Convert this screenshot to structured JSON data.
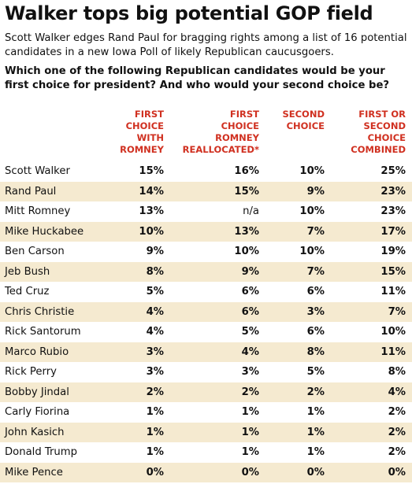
{
  "title": "Walker tops big potential GOP field",
  "subtitle": "Scott Walker edges Rand Paul for bragging rights among a list of 16 potential candidates in a new Iowa Poll of likely Republican caucusgoers.",
  "question": "Which one of the following Republican candidates would be your first choice for president? And who would your second choice be?",
  "colors": {
    "header_red": "#d03020",
    "row_shade": "#f5ead0"
  },
  "chart_data": {
    "type": "table",
    "columns": [
      "FIRST\nCHOICE\nWITH\nROMNEY",
      "FIRST\nCHOICE\nROMNEY\nREALLOCATED*",
      "SECOND\nCHOICE",
      "FIRST OR\nSECOND\nCHOICE\nCOMBINED"
    ],
    "rows": [
      {
        "name": "Scott Walker",
        "values": [
          "15%",
          "16%",
          "10%",
          "25%"
        ]
      },
      {
        "name": "Rand Paul",
        "values": [
          "14%",
          "15%",
          "9%",
          "23%"
        ]
      },
      {
        "name": "Mitt Romney",
        "values": [
          "13%",
          "n/a",
          "10%",
          "23%"
        ]
      },
      {
        "name": "Mike Huckabee",
        "values": [
          "10%",
          "13%",
          "7%",
          "17%"
        ]
      },
      {
        "name": "Ben Carson",
        "values": [
          "9%",
          "10%",
          "10%",
          "19%"
        ]
      },
      {
        "name": "Jeb Bush",
        "values": [
          "8%",
          "9%",
          "7%",
          "15%"
        ]
      },
      {
        "name": "Ted Cruz",
        "values": [
          "5%",
          "6%",
          "6%",
          "11%"
        ]
      },
      {
        "name": "Chris Christie",
        "values": [
          "4%",
          "6%",
          "3%",
          "7%"
        ]
      },
      {
        "name": "Rick Santorum",
        "values": [
          "4%",
          "5%",
          "6%",
          "10%"
        ]
      },
      {
        "name": "Marco Rubio",
        "values": [
          "3%",
          "4%",
          "8%",
          "11%"
        ]
      },
      {
        "name": "Rick Perry",
        "values": [
          "3%",
          "3%",
          "5%",
          "8%"
        ]
      },
      {
        "name": "Bobby Jindal",
        "values": [
          "2%",
          "2%",
          "2%",
          "4%"
        ]
      },
      {
        "name": "Carly Fiorina",
        "values": [
          "1%",
          "1%",
          "1%",
          "2%"
        ]
      },
      {
        "name": "John Kasich",
        "values": [
          "1%",
          "1%",
          "1%",
          "2%"
        ]
      },
      {
        "name": "Donald Trump",
        "values": [
          "1%",
          "1%",
          "1%",
          "2%"
        ]
      },
      {
        "name": "Mike Pence",
        "values": [
          "0%",
          "0%",
          "0%",
          "0%"
        ]
      }
    ]
  }
}
